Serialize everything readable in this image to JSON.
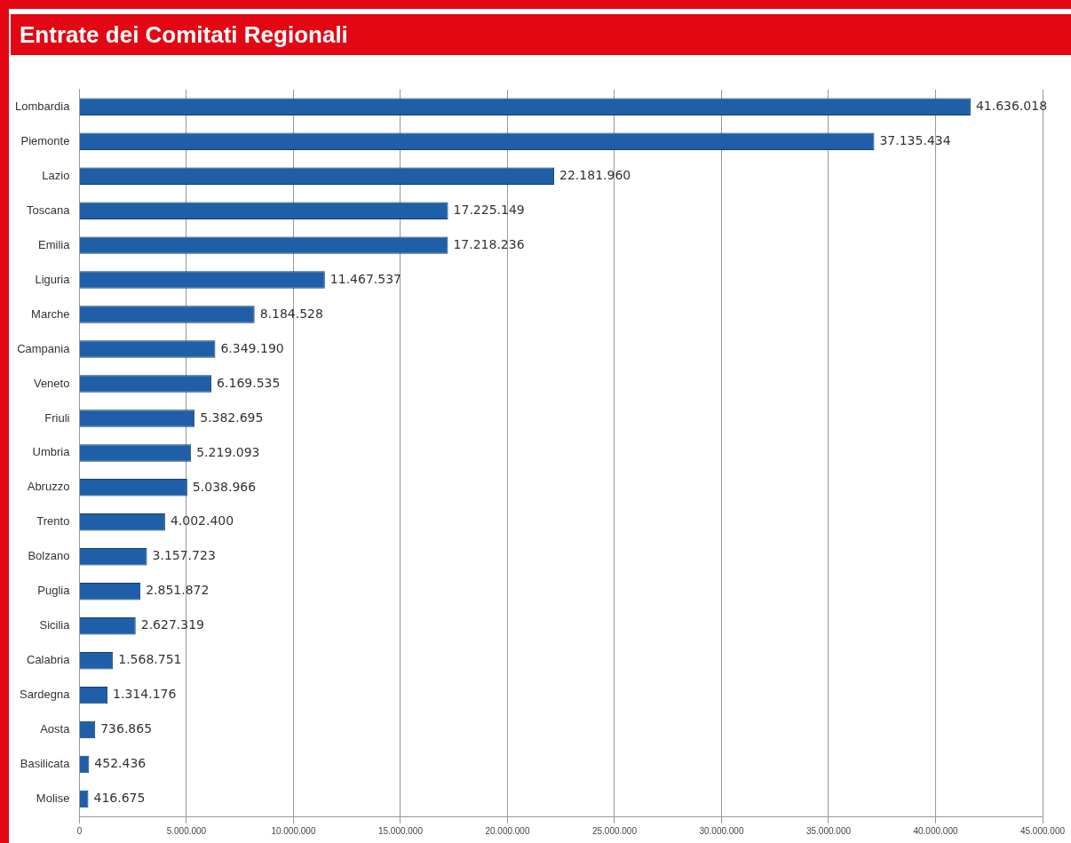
{
  "chart_data": {
    "type": "bar",
    "orientation": "horizontal",
    "title": "Entrate dei Comitati Regionali",
    "categories": [
      "Lombardia",
      "Piemonte",
      "Lazio",
      "Toscana",
      "Emilia",
      "Liguria",
      "Marche",
      "Campania",
      "Veneto",
      "Friuli",
      "Umbria",
      "Abruzzo",
      "Trento",
      "Bolzano",
      "Puglia",
      "Sicilia",
      "Calabria",
      "Sardegna",
      "Aosta",
      "Basilicata",
      "Molise"
    ],
    "values": [
      41636018,
      37135434,
      22181960,
      17225149,
      17218236,
      11467537,
      8184528,
      6349190,
      6169535,
      5382695,
      5219093,
      5038966,
      4002400,
      3157723,
      2851872,
      2627319,
      1568751,
      1314176,
      736865,
      452436,
      416675
    ],
    "value_labels": [
      "41.636.018",
      "37.135.434",
      "22.181.960",
      "17.225.149",
      "17.218.236",
      "11.467.537",
      "8.184.528",
      "6.349.190",
      "6.169.535",
      "5.382.695",
      "5.219.093",
      "5.038.966",
      "4.002.400",
      "3.157.723",
      "2.851.872",
      "2.627.319",
      "1.568.751",
      "1.314.176",
      "736.865",
      "452.436",
      "416.675"
    ],
    "color": "#1f5fa8",
    "xlim": [
      0,
      45000000
    ],
    "xticks": [
      0,
      {
        "value": 5000000,
        "label": "5.000.000"
      },
      {
        "value": 10000000,
        "label": "10.000.000"
      },
      {
        "value": 15000000,
        "label": "15.000.000"
      },
      {
        "value": 20000000,
        "label": "20.000.000"
      },
      {
        "value": 25000000,
        "label": "25.000.000"
      },
      {
        "value": 30000000,
        "label": "30.000.000"
      },
      {
        "value": 35000000,
        "label": "35.000.000"
      },
      {
        "value": 40000000,
        "label": "40.000.000"
      },
      {
        "value": 45000000,
        "label": "45.000.000"
      }
    ],
    "grid": "x"
  }
}
